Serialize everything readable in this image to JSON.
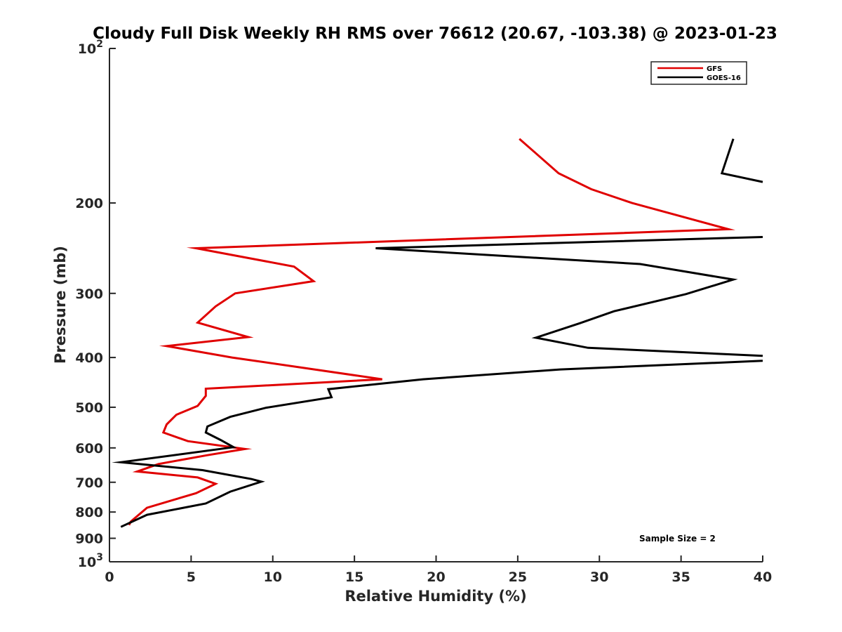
{
  "chart_data": {
    "type": "line",
    "title": "Cloudy Full Disk Weekly RH RMS over 76612 (20.67, -103.38) @ 2023-01-23",
    "xlabel": "Relative Humidity (%)",
    "ylabel": "Pressure (mb)",
    "xlim": [
      0,
      40
    ],
    "ylim": [
      100,
      1000
    ],
    "yscale": "log",
    "y_reversed": true,
    "x_ticks": [
      0,
      5,
      10,
      15,
      20,
      25,
      30,
      35,
      40
    ],
    "x_tick_labels": [
      "0",
      "5",
      "10",
      "15",
      "20",
      "25",
      "30",
      "35",
      "40"
    ],
    "y_ticks": [
      200,
      300,
      400,
      500,
      600,
      700,
      800,
      900
    ],
    "y_tick_labels": [
      "200",
      "300",
      "400",
      "500",
      "600",
      "700",
      "800",
      "900"
    ],
    "y_power_labels": [
      {
        "value": 100,
        "base": "10",
        "exp": "2"
      },
      {
        "value": 1000,
        "base": "10",
        "exp": "3"
      }
    ],
    "legend_position": "top-right",
    "annotation": "Sample Size = 2",
    "series": [
      {
        "name": "GFS",
        "color": "#e00000",
        "points": [
          [
            25.1,
            150
          ],
          [
            27.5,
            175
          ],
          [
            29.5,
            188
          ],
          [
            32.0,
            200
          ],
          [
            37.9,
            225
          ],
          [
            5.3,
            245
          ],
          [
            11.3,
            266
          ],
          [
            12.5,
            284
          ],
          [
            7.7,
            300
          ],
          [
            6.5,
            318
          ],
          [
            5.4,
            342
          ],
          [
            8.5,
            365
          ],
          [
            3.5,
            380
          ],
          [
            7.5,
            400
          ],
          [
            16.7,
            441
          ],
          [
            5.9,
            460
          ],
          [
            5.9,
            475
          ],
          [
            5.4,
            497
          ],
          [
            4.1,
            517
          ],
          [
            3.5,
            540
          ],
          [
            3.3,
            560
          ],
          [
            4.8,
            582
          ],
          [
            8.3,
            603
          ],
          [
            6.0,
            620
          ],
          [
            3.0,
            645
          ],
          [
            1.7,
            667
          ],
          [
            5.4,
            685
          ],
          [
            6.5,
            705
          ],
          [
            5.3,
            735
          ],
          [
            2.3,
            785
          ],
          [
            1.3,
            835
          ],
          [
            1.2,
            848
          ]
        ]
      },
      {
        "name": "GOES-16",
        "color": "#000000",
        "points": [
          [
            38.2,
            150
          ],
          [
            37.5,
            175
          ],
          [
            40.0,
            182
          ],
          [
            null,
            null
          ],
          [
            40.0,
            233
          ],
          [
            16.3,
            245
          ],
          [
            32.5,
            263
          ],
          [
            38.2,
            282
          ],
          [
            35.3,
            301
          ],
          [
            30.9,
            325
          ],
          [
            28.8,
            343
          ],
          [
            26.1,
            366
          ],
          [
            29.3,
            383
          ],
          [
            40.0,
            397
          ],
          [
            null,
            null
          ],
          [
            40.0,
            406
          ],
          [
            27.6,
            422
          ],
          [
            19.2,
            441
          ],
          [
            13.4,
            461
          ],
          [
            13.6,
            478
          ],
          [
            9.6,
            501
          ],
          [
            7.4,
            522
          ],
          [
            6.0,
            545
          ],
          [
            5.9,
            560
          ],
          [
            6.8,
            579
          ],
          [
            7.6,
            598
          ],
          [
            0.7,
            640
          ],
          [
            5.7,
            663
          ],
          [
            8.7,
            690
          ],
          [
            9.3,
            698
          ],
          [
            7.4,
            730
          ],
          [
            5.9,
            770
          ],
          [
            2.3,
            810
          ],
          [
            0.7,
            855
          ]
        ]
      }
    ]
  }
}
